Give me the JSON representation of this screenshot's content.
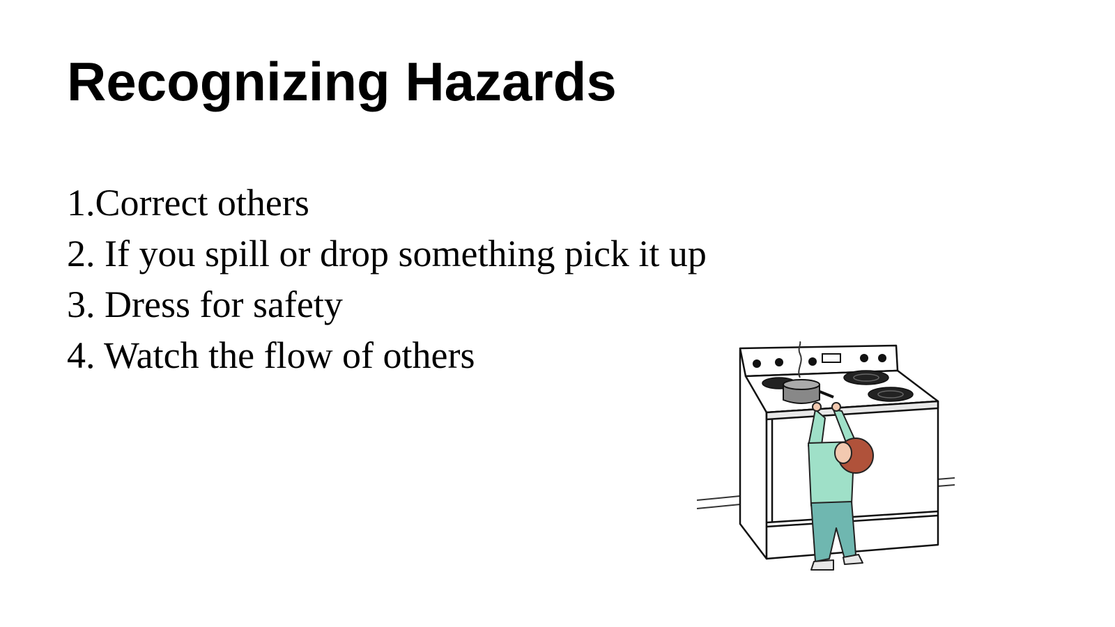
{
  "slide": {
    "title": "Recognizing Hazards",
    "bullets": [
      "1.Correct others",
      "2. If you spill or drop something pick it up",
      "3. Dress for safety",
      "4. Watch the flow of others"
    ]
  },
  "illustration": {
    "icon": "child-reaching-stove-clipart",
    "colors": {
      "shirt": "#9fe0c8",
      "pants": "#6fb7b0",
      "hair": "#b0523a",
      "skin": "#f2c9b0"
    }
  }
}
